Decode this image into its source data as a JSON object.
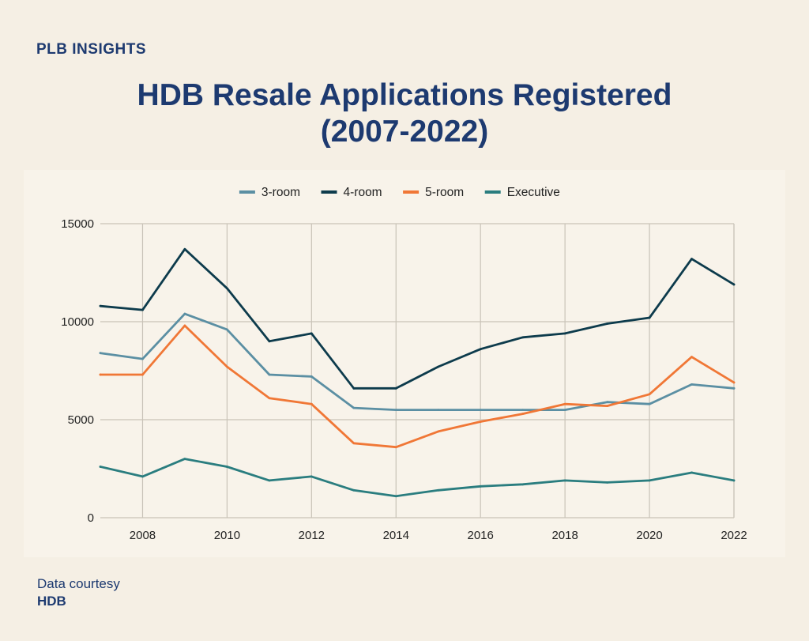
{
  "brand": {
    "name": "PLB INSIGHTS"
  },
  "title": {
    "line1": "HDB Resale Applications Registered",
    "line2": "(2007-2022)"
  },
  "source": {
    "label": "Data courtesy",
    "org": "HDB"
  },
  "colors": {
    "background": "#f5efe4",
    "title": "#1d3a70",
    "3-room": "#5b8fa3",
    "4-room": "#0d3b4c",
    "5-room": "#f07736",
    "Executive": "#2a7d7f",
    "grid": "#c9c3b8"
  },
  "chart_data": {
    "type": "line",
    "title": "HDB Resale Applications Registered (2007-2022)",
    "xlabel": "",
    "ylabel": "",
    "x": [
      2007,
      2008,
      2009,
      2010,
      2011,
      2012,
      2013,
      2014,
      2015,
      2016,
      2017,
      2018,
      2019,
      2020,
      2021,
      2022
    ],
    "xticks": [
      2008,
      2010,
      2012,
      2014,
      2016,
      2018,
      2020,
      2022
    ],
    "yticks": [
      0,
      5000,
      10000,
      15000
    ],
    "xlim": [
      2007,
      2022
    ],
    "ylim": [
      0,
      15000
    ],
    "grid": true,
    "legend_position": "top-center",
    "series": [
      {
        "name": "3-room",
        "values": [
          8400,
          8100,
          10400,
          9600,
          7300,
          7200,
          5600,
          5500,
          5500,
          5500,
          5500,
          5500,
          5900,
          5800,
          6800,
          6600
        ]
      },
      {
        "name": "4-room",
        "values": [
          10800,
          10600,
          13700,
          11700,
          9000,
          9400,
          6600,
          6600,
          7700,
          8600,
          9200,
          9400,
          9900,
          10200,
          13200,
          11900
        ]
      },
      {
        "name": "5-room",
        "values": [
          7300,
          7300,
          9800,
          7700,
          6100,
          5800,
          3800,
          3600,
          4400,
          4900,
          5300,
          5800,
          5700,
          6300,
          8200,
          6900
        ]
      },
      {
        "name": "Executive",
        "values": [
          2600,
          2100,
          3000,
          2600,
          1900,
          2100,
          1400,
          1100,
          1400,
          1600,
          1700,
          1900,
          1800,
          1900,
          2300,
          1900
        ]
      }
    ]
  }
}
